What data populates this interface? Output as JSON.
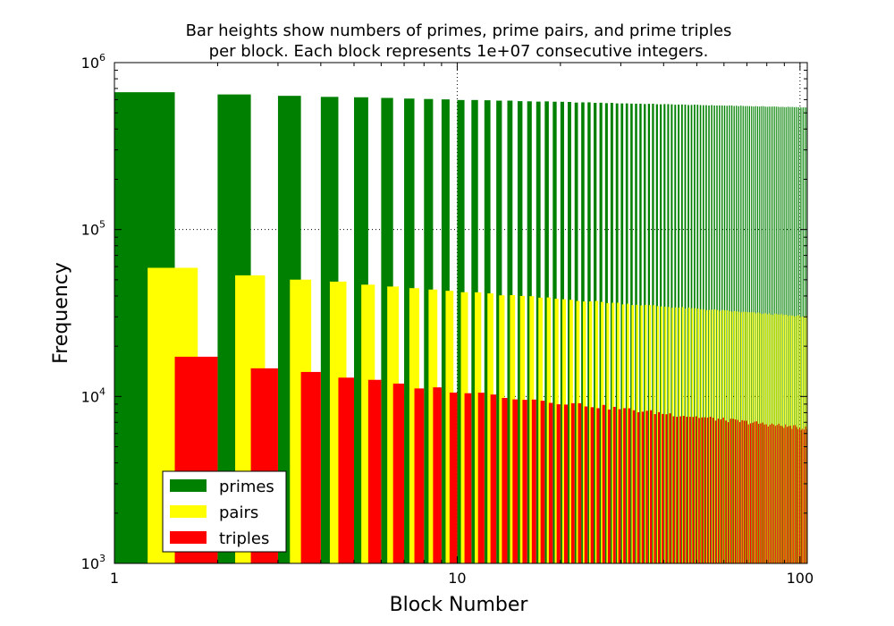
{
  "chart_data": {
    "type": "bar",
    "title_line1": "Bar heights show numbers of primes, prime pairs, and prime triples",
    "title_line2": "per block.  Each block represents 1e+07 consecutive integers.",
    "xlabel": "Block Number",
    "ylabel": "Frequency",
    "xscale": "log",
    "yscale": "log",
    "xlim": [
      1,
      105
    ],
    "ylim": [
      1000,
      1000000
    ],
    "x_ticks": [
      {
        "value": 1,
        "label": "1"
      },
      {
        "value": 10,
        "label": "10"
      },
      {
        "value": 100,
        "label": "100"
      }
    ],
    "y_ticks": [
      {
        "value": 1000,
        "base": "10",
        "exp": "3"
      },
      {
        "value": 10000,
        "base": "10",
        "exp": "4"
      },
      {
        "value": 100000,
        "base": "10",
        "exp": "5"
      },
      {
        "value": 1000000,
        "base": "10",
        "exp": "6"
      }
    ],
    "grid": "major, dotted",
    "legend_placement": "lower-left",
    "categories": "blocks 1..104",
    "series": [
      {
        "name": "primes",
        "color": "#008000",
        "offset": 0.0,
        "first": 664579,
        "decay_exp": 0.045,
        "jitter": 0.004
      },
      {
        "name": "pairs",
        "color": "#ffff00",
        "offset": 0.25,
        "first": 58980,
        "decay_exp": 0.145,
        "jitter": 0.012
      },
      {
        "name": "triples",
        "color": "#ff0000",
        "offset": 0.5,
        "first": 17300,
        "decay_exp": 0.213,
        "jitter": 0.03
      }
    ],
    "block_count": 104,
    "bar_width": 0.5
  }
}
